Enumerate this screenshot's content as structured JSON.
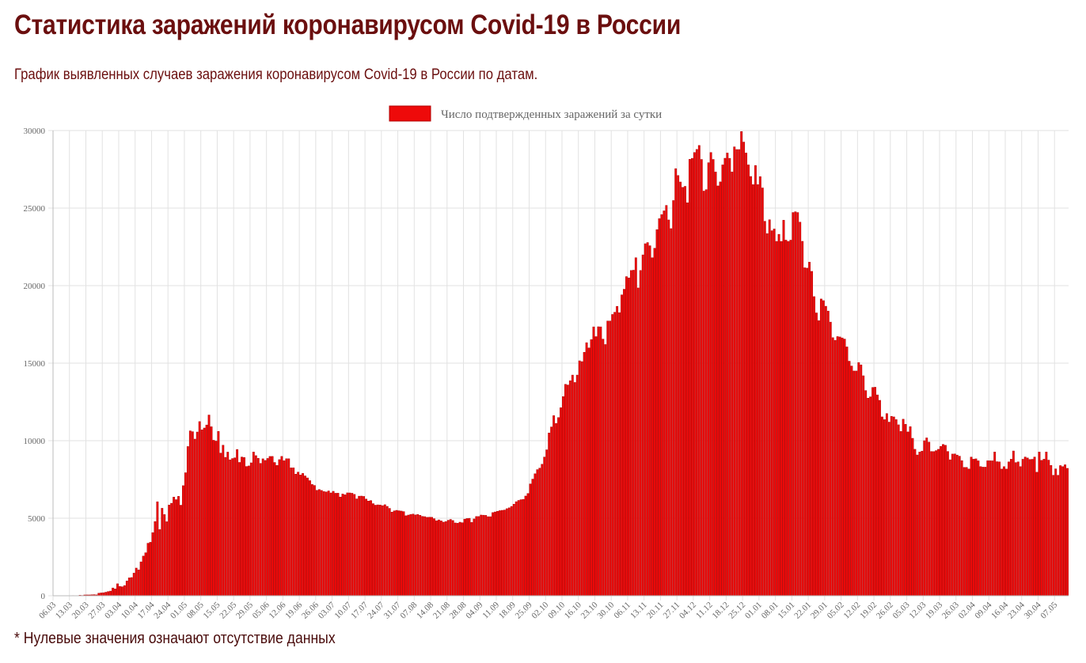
{
  "title": "Статистика заражений коронавирусом Covid-19 в России",
  "subtitle": "График выявленных случаев заражения коронавирусом Covid-19 в России по датам.",
  "footnote": "* Нулевые значения означают отсутствие данных",
  "colors": {
    "title": "#6b0f0f",
    "bar": "#ee0a0a",
    "bar_border": "#b00000",
    "grid": "#e2e2e2"
  },
  "chart_data": {
    "type": "bar",
    "title": "",
    "xlabel": "",
    "ylabel": "",
    "legend": {
      "label": "Число подтвержденных заражений за сутки",
      "placement": "top-center"
    },
    "ylim": [
      0,
      30000
    ],
    "y_ticks": [
      "0",
      "5000",
      "10000",
      "15000",
      "20000",
      "25000",
      "30000"
    ],
    "grid": true,
    "x_start": "06.03.2020",
    "x_end": "12.05.2021",
    "x_tick_every_days": 7,
    "x_tick_labels": [
      "06.03",
      "13.03",
      "20.03",
      "27.03",
      "03.04",
      "10.04",
      "17.04",
      "24.04",
      "01.05",
      "08.05",
      "15.05",
      "22.05",
      "29.05",
      "05.06",
      "12.06",
      "19.06",
      "26.06",
      "03.07",
      "10.07",
      "17.07",
      "24.07",
      "31.07",
      "07.08",
      "14.08",
      "21.08",
      "28.08",
      "04.09",
      "11.09",
      "18.09",
      "25.09",
      "02.10",
      "09.10",
      "16.10",
      "23.10",
      "30.10",
      "06.11",
      "13.11",
      "20.11",
      "27.11",
      "04.12",
      "11.12",
      "18.12",
      "25.12",
      "01.01",
      "08.01",
      "15.01",
      "22.01",
      "29.01",
      "05.02",
      "12.02",
      "19.02",
      "26.02",
      "05.03",
      "12.03",
      "19.03",
      "26.03",
      "02.04",
      "09.04",
      "16.04",
      "23.04",
      "30.04",
      "07.05"
    ],
    "values": [
      3,
      4,
      0,
      3,
      3,
      8,
      6,
      11,
      14,
      4,
      10,
      33,
      21,
      52,
      54,
      53,
      62,
      71,
      57,
      163,
      182,
      196,
      228,
      270,
      302,
      501,
      440,
      771,
      601,
      582,
      658,
      954,
      1154,
      1175,
      1459,
      1786,
      1667,
      2186,
      2558,
      2774,
      3388,
      3448,
      4070,
      4785,
      6060,
      4268,
      5642,
      5236,
      4774,
      5849,
      5966,
      6361,
      6198,
      6411,
      5841,
      7099,
      7933,
      9623,
      10633,
      10581,
      10102,
      10559,
      11231,
      10699,
      10817,
      11012,
      11656,
      10899,
      10028,
      9974,
      10598,
      9200,
      9709,
      8926,
      9263,
      8764,
      8849,
      8894,
      9434,
      8599,
      8946,
      8915,
      8338,
      8371,
      8572,
      9268,
      9035,
      8863,
      8536,
      8831,
      8726,
      8855,
      8984,
      8985,
      8595,
      8404,
      8779,
      8987,
      8706,
      8835,
      8835,
      8246,
      8248,
      7843,
      7972,
      7790,
      7889,
      7728,
      7600,
      7425,
      7176,
      7113,
      6800,
      6852,
      6791,
      6719,
      6693,
      6760,
      6632,
      6736,
      6611,
      6615,
      6368,
      6562,
      6509,
      6635,
      6632,
      6611,
      6537,
      6248,
      6422,
      6428,
      6406,
      6234,
      6109,
      6139,
      5940,
      5842,
      5862,
      5848,
      5811,
      5871,
      5765,
      5635,
      5395,
      5475,
      5509,
      5482,
      5462,
      5427,
      5159,
      5204,
      5241,
      5267,
      5212,
      5241,
      5189,
      5118,
      5102,
      5057,
      5065,
      5061,
      4969,
      4839,
      4892,
      4828,
      4748,
      4785,
      4870,
      4921,
      4852,
      4696,
      4676,
      4744,
      4711,
      4941,
      4980,
      4993,
      4729,
      4952,
      5110,
      5110,
      5205,
      5195,
      5185,
      5099,
      5099,
      5363,
      5405,
      5449,
      5488,
      5509,
      5529,
      5616,
      5670,
      5762,
      5905,
      6065,
      6148,
      6196,
      6215,
      6431,
      6595,
      7212,
      7523,
      7867,
      8135,
      8232,
      8481,
      8945,
      9412,
      10499,
      10888,
      11615,
      11115,
      11493,
      12126,
      12846,
      13634,
      13592,
      13868,
      14231,
      13754,
      14231,
      15150,
      15099,
      15700,
      16319,
      15982,
      16521,
      17340,
      16710,
      17347,
      17340,
      16550,
      16202,
      17717,
      17717,
      18140,
      18283,
      18665,
      18257,
      19404,
      19768,
      20582,
      20498,
      20977,
      20996,
      21798,
      19851,
      20977,
      21983,
      22702,
      22778,
      22572,
      21798,
      22410,
      23610,
      24318,
      24581,
      24822,
      25173,
      24236,
      23675,
      25487,
      27543,
      27100,
      26683,
      26338,
      26402,
      25345,
      28145,
      28209,
      28585,
      28782,
      29039,
      28137,
      26097,
      26190,
      27927,
      28585,
      28137,
      27328,
      26431,
      26689,
      27787,
      28214,
      28552,
      28209,
      27328,
      28948,
      28776,
      28776,
      29935,
      29258,
      28552,
      27787,
      27039,
      26513,
      27747,
      26513,
      27029,
      26301,
      24150,
      23351,
      24246,
      23541,
      23652,
      22851,
      23309,
      22851,
      24217,
      22934,
      22851,
      22934,
      24715,
      24763,
      24715,
      24092,
      22857,
      21152,
      21127,
      21513,
      20921,
      19290,
      18241,
      17741,
      19138,
      19032,
      18670,
      18359,
      17648,
      16643,
      16474,
      16714,
      16688,
      16627,
      16553,
      16048,
      15127,
      14816,
      14494,
      14494,
      15038,
      14889,
      14185,
      13233,
      12742,
      12828,
      13433,
      13447,
      12953,
      12604,
      11534,
      11359,
      11749,
      11198,
      11571,
      11534,
      11359,
      11024,
      10595,
      11385,
      11057,
      10565,
      10906,
      10153,
      9445,
      9079,
      9270,
      9327,
      10000,
      10180,
      9908,
      9303,
      9299,
      9360,
      9445,
      9632,
      9759,
      9704,
      9305,
      8769,
      9138,
      9145,
      9073,
      9000,
      8711,
      8277,
      8277,
      8173,
      8944,
      8806,
      8830,
      8702,
      8328,
      8294,
      8294,
      8705,
      8704,
      8702,
      9270,
      8646,
      8632,
      8173,
      8325,
      8173,
      8632,
      8806,
      9336,
      8589,
      8633,
      8328,
      8803,
      8947,
      8885,
      8788,
      8800,
      8946,
      7966,
      9270,
      8731,
      8807,
      9270,
      8747,
      8407,
      7770,
      8183,
      7770,
      8395,
      8329,
      8447,
      8217
    ]
  }
}
